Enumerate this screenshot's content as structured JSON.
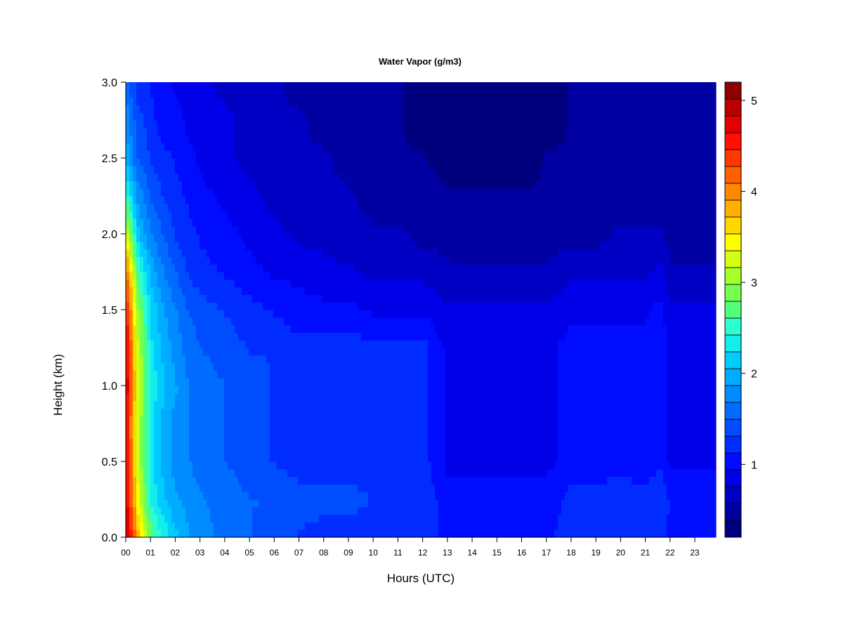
{
  "chart_data": {
    "type": "heatmap",
    "title": "Water Vapor (g/m3)",
    "xlabel": "Hours (UTC)",
    "ylabel": "Height (km)",
    "xlim": [
      0,
      23.85
    ],
    "ylim": [
      0.0,
      3.0
    ],
    "x_ticks": [
      0,
      1,
      2,
      3,
      4,
      5,
      6,
      7,
      8,
      9,
      10,
      11,
      12,
      13,
      14,
      15,
      16,
      17,
      18,
      19,
      20,
      21,
      22,
      23
    ],
    "x_tick_labels": [
      "00",
      "01",
      "02",
      "03",
      "04",
      "05",
      "06",
      "07",
      "08",
      "09",
      "10",
      "11",
      "12",
      "13",
      "14",
      "15",
      "16",
      "17",
      "18",
      "19",
      "20",
      "21",
      "22",
      "23"
    ],
    "y_ticks": [
      0.0,
      0.5,
      1.0,
      1.5,
      2.0,
      2.5,
      3.0
    ],
    "y_tick_labels": [
      "0.0",
      "0.5",
      "1.0",
      "1.5",
      "2.0",
      "2.5",
      "3.0"
    ],
    "colorbar": {
      "range": [
        0.2,
        5.2
      ],
      "ticks": [
        1,
        2,
        3,
        4,
        5
      ],
      "tick_labels": [
        "1",
        "2",
        "3",
        "4",
        "5"
      ],
      "colors": [
        "#00007f",
        "#0000a2",
        "#0000c5",
        "#0000e8",
        "#000cff",
        "#002cff",
        "#004cff",
        "#006cff",
        "#008cff",
        "#00acff",
        "#00ccff",
        "#13eeea",
        "#2effd0",
        "#50ff7a",
        "#77ff4f",
        "#a4ff2a",
        "#d3ff10",
        "#ffff00",
        "#ffd800",
        "#ffb000",
        "#ff8800",
        "#ff6000",
        "#ff3800",
        "#ff1000",
        "#e40000",
        "#b90000",
        "#8f0000"
      ]
    },
    "hours": [
      0,
      0.5,
      1,
      1.5,
      2,
      2.5,
      3,
      4,
      5,
      6,
      7,
      8,
      9,
      10,
      11,
      12,
      13,
      14,
      15,
      16,
      17,
      18,
      19,
      20,
      21,
      21.6,
      22,
      23,
      23.85
    ],
    "heights": [
      0.0,
      0.25,
      0.5,
      0.75,
      1.0,
      1.25,
      1.5,
      1.75,
      2.0,
      2.25,
      2.5,
      2.75,
      3.0
    ],
    "values": [
      [
        5.0,
        4.8,
        4.8,
        4.7,
        4.9,
        4.8,
        4.6,
        4.2,
        3.3,
        2.5,
        2.0,
        1.8,
        1.6
      ],
      [
        3.8,
        3.4,
        3.2,
        3.2,
        3.3,
        3.2,
        3.0,
        2.6,
        2.1,
        1.8,
        1.5,
        1.4,
        1.2
      ],
      [
        2.8,
        2.4,
        2.3,
        2.3,
        2.4,
        2.3,
        2.2,
        2.0,
        1.7,
        1.5,
        1.3,
        1.2,
        1.1
      ],
      [
        2.4,
        2.1,
        2.0,
        2.0,
        2.1,
        2.0,
        1.9,
        1.7,
        1.5,
        1.3,
        1.2,
        1.0,
        1.0
      ],
      [
        2.1,
        1.9,
        1.8,
        1.8,
        1.9,
        1.8,
        1.7,
        1.5,
        1.3,
        1.2,
        1.1,
        1.0,
        0.9
      ],
      [
        1.9,
        1.8,
        1.7,
        1.7,
        1.7,
        1.6,
        1.5,
        1.3,
        1.2,
        1.1,
        1.0,
        0.9,
        0.9
      ],
      [
        1.8,
        1.7,
        1.6,
        1.6,
        1.6,
        1.5,
        1.4,
        1.2,
        1.1,
        1.0,
        0.9,
        0.9,
        0.8
      ],
      [
        1.6,
        1.6,
        1.5,
        1.5,
        1.5,
        1.4,
        1.3,
        1.1,
        1.0,
        0.9,
        0.8,
        0.8,
        0.7
      ],
      [
        1.5,
        1.5,
        1.4,
        1.4,
        1.4,
        1.3,
        1.2,
        1.0,
        0.9,
        0.8,
        0.7,
        0.7,
        0.6
      ],
      [
        1.4,
        1.5,
        1.3,
        1.3,
        1.3,
        1.3,
        1.1,
        0.9,
        0.8,
        0.7,
        0.7,
        0.6,
        0.6
      ],
      [
        1.3,
        1.4,
        1.2,
        1.2,
        1.2,
        1.2,
        1.0,
        0.9,
        0.7,
        0.7,
        0.6,
        0.6,
        0.5
      ],
      [
        1.2,
        1.4,
        1.2,
        1.2,
        1.2,
        1.2,
        1.0,
        0.8,
        0.7,
        0.6,
        0.6,
        0.5,
        0.5
      ],
      [
        1.2,
        1.4,
        1.2,
        1.2,
        1.2,
        1.2,
        1.0,
        0.8,
        0.6,
        0.6,
        0.5,
        0.5,
        0.5
      ],
      [
        1.2,
        1.3,
        1.2,
        1.2,
        1.2,
        1.2,
        0.9,
        0.7,
        0.6,
        0.5,
        0.5,
        0.4,
        0.4
      ],
      [
        1.2,
        1.3,
        1.2,
        1.2,
        1.2,
        1.2,
        0.9,
        0.7,
        0.6,
        0.5,
        0.4,
        0.4,
        0.4
      ],
      [
        1.2,
        1.3,
        1.2,
        1.2,
        1.2,
        1.2,
        0.9,
        0.7,
        0.5,
        0.5,
        0.4,
        0.3,
        0.3
      ],
      [
        1.1,
        1.0,
        0.9,
        0.9,
        0.9,
        0.9,
        0.8,
        0.6,
        0.5,
        0.4,
        0.3,
        0.3,
        0.3
      ],
      [
        1.1,
        1.0,
        0.9,
        0.9,
        0.9,
        0.9,
        0.8,
        0.6,
        0.5,
        0.4,
        0.3,
        0.3,
        0.3
      ],
      [
        1.1,
        1.0,
        0.9,
        0.9,
        0.9,
        0.9,
        0.8,
        0.6,
        0.5,
        0.4,
        0.3,
        0.3,
        0.3
      ],
      [
        1.1,
        1.0,
        0.9,
        0.9,
        0.9,
        0.9,
        0.8,
        0.6,
        0.5,
        0.4,
        0.3,
        0.3,
        0.3
      ],
      [
        1.1,
        1.0,
        0.9,
        0.9,
        0.9,
        0.9,
        0.8,
        0.6,
        0.5,
        0.4,
        0.4,
        0.3,
        0.3
      ],
      [
        1.2,
        1.2,
        1.0,
        1.0,
        1.0,
        1.0,
        0.9,
        0.7,
        0.5,
        0.5,
        0.4,
        0.4,
        0.4
      ],
      [
        1.2,
        1.2,
        1.0,
        1.0,
        1.0,
        1.0,
        0.9,
        0.7,
        0.5,
        0.5,
        0.4,
        0.4,
        0.4
      ],
      [
        1.2,
        1.3,
        1.0,
        1.0,
        1.0,
        1.0,
        0.9,
        0.7,
        0.6,
        0.5,
        0.5,
        0.4,
        0.4
      ],
      [
        1.2,
        1.2,
        1.0,
        1.0,
        1.0,
        1.0,
        0.9,
        0.7,
        0.6,
        0.5,
        0.5,
        0.4,
        0.4
      ],
      [
        1.2,
        1.3,
        1.1,
        1.1,
        1.1,
        1.1,
        1.0,
        0.8,
        0.6,
        0.5,
        0.5,
        0.5,
        0.5
      ],
      [
        1.1,
        1.1,
        0.9,
        0.9,
        0.9,
        0.9,
        0.8,
        0.6,
        0.5,
        0.4,
        0.4,
        0.4,
        0.4
      ],
      [
        1.1,
        1.1,
        0.9,
        0.9,
        0.9,
        0.9,
        0.8,
        0.6,
        0.5,
        0.4,
        0.4,
        0.4,
        0.4
      ],
      [
        1.0,
        1.1,
        0.9,
        0.9,
        0.9,
        0.9,
        0.8,
        0.6,
        0.5,
        0.4,
        0.4,
        0.4,
        0.4
      ]
    ]
  }
}
